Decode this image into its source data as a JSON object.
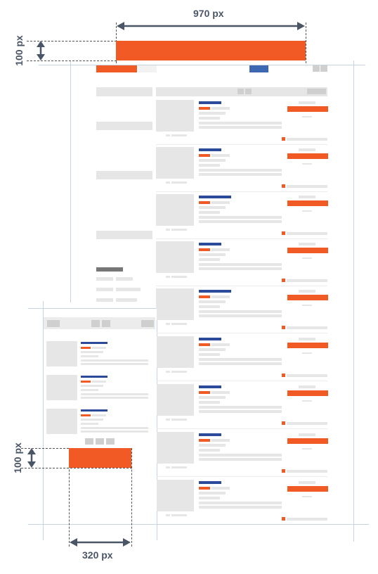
{
  "dimensions": {
    "desktop_width_label": "970 px",
    "desktop_height_label": "100 px",
    "mobile_height_label": "100 px",
    "mobile_width_label": "320 px"
  },
  "colors": {
    "accent_orange": "#f15a24",
    "accent_blue": "#2c4a9a",
    "arrow": "#4a5566",
    "placeholder_gray": "#e6e6e6",
    "guide_line": "#c5d3e3"
  },
  "desktop_listing_count": 9,
  "mobile_listing_count": 3
}
